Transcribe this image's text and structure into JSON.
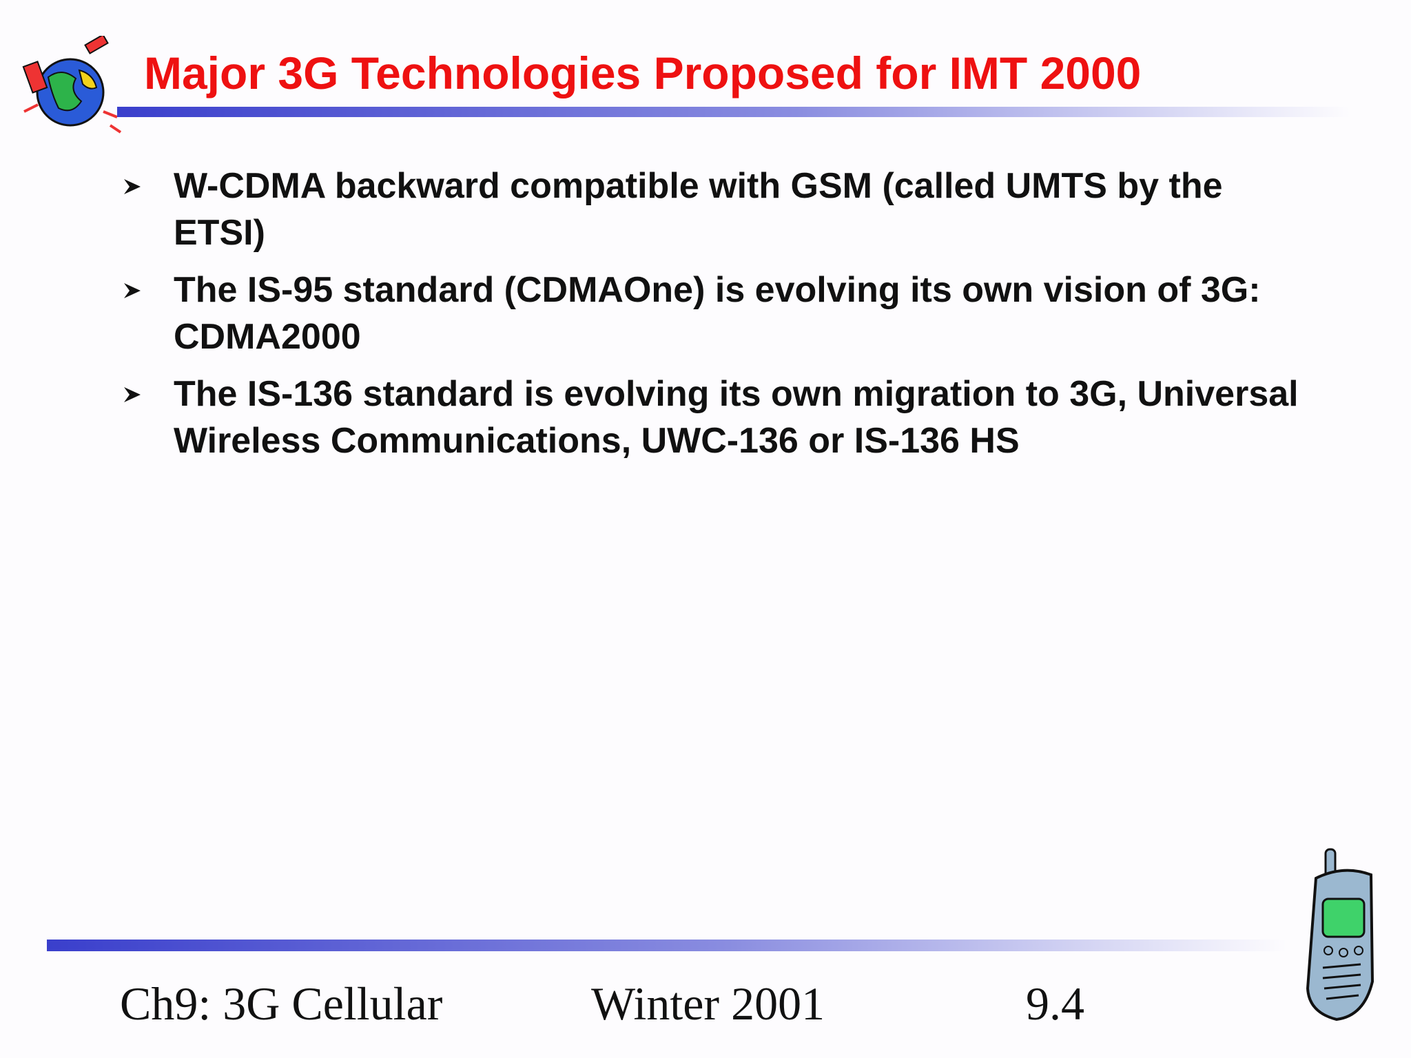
{
  "header": {
    "title": "Major 3G Technologies Proposed for IMT 2000"
  },
  "bullets": [
    "W-CDMA backward compatible with GSM (called UMTS by the ETSI)",
    "The IS-95 standard (CDMAOne) is evolving its own vision of 3G: CDMA2000",
    "The IS-136 standard is evolving its own migration to 3G, Universal Wireless Communications, UWC-136 or IS-136 HS"
  ],
  "footer": {
    "left": "Ch9: 3G Cellular",
    "center": "Winter 2001",
    "right": "9.4"
  }
}
